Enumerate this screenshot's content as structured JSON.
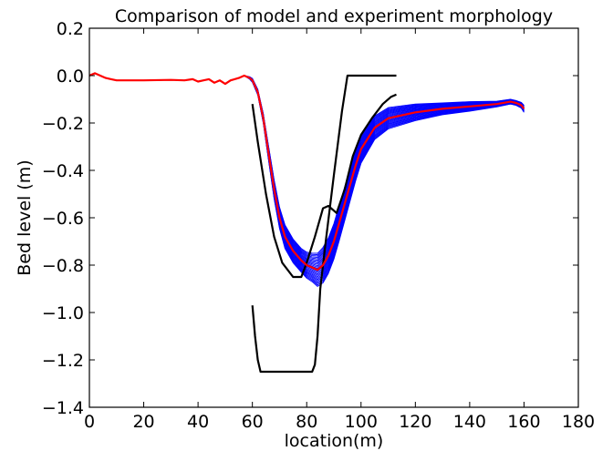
{
  "chart_data": {
    "type": "line",
    "title": "Comparison of model and experiment morphology",
    "xlabel": "location(m)",
    "ylabel": "Bed level (m)",
    "xlim": [
      0,
      180
    ],
    "ylim": [
      -1.4,
      0.2
    ],
    "xticks": [
      0,
      20,
      40,
      60,
      80,
      100,
      120,
      140,
      160,
      180
    ],
    "yticks": [
      -1.4,
      -1.2,
      -1.0,
      -0.8,
      -0.6,
      -0.4,
      -0.2,
      0.0,
      0.2
    ],
    "xtick_labels": [
      "0",
      "20",
      "40",
      "60",
      "80",
      "100",
      "120",
      "140",
      "160",
      "180"
    ],
    "ytick_labels": [
      "−1.4",
      "−1.2",
      "−1.0",
      "−0.8",
      "−0.6",
      "−0.4",
      "−0.2",
      "0.0",
      "0.2"
    ],
    "grid": false,
    "colors": {
      "ensemble": "#0000ff",
      "mean": "#ff0000",
      "experiment": "#000000"
    },
    "ensemble": {
      "x": [
        0,
        2,
        4,
        6,
        8,
        10,
        20,
        30,
        35,
        38,
        40,
        42,
        44,
        46,
        48,
        50,
        52,
        55,
        57,
        59,
        60,
        62,
        64,
        66,
        68,
        70,
        72,
        75,
        78,
        80,
        82,
        84,
        86,
        88,
        90,
        92,
        95,
        98,
        100,
        105,
        110,
        120,
        130,
        140,
        150,
        155,
        157,
        159,
        160
      ],
      "center": [
        0.0,
        0.01,
        0.0,
        -0.01,
        -0.015,
        -0.02,
        -0.02,
        -0.018,
        -0.02,
        -0.015,
        -0.025,
        -0.02,
        -0.015,
        -0.03,
        -0.02,
        -0.035,
        -0.02,
        -0.01,
        0.0,
        -0.01,
        -0.02,
        -0.07,
        -0.18,
        -0.33,
        -0.48,
        -0.6,
        -0.68,
        -0.74,
        -0.78,
        -0.8,
        -0.81,
        -0.82,
        -0.8,
        -0.76,
        -0.7,
        -0.62,
        -0.5,
        -0.38,
        -0.31,
        -0.22,
        -0.18,
        -0.155,
        -0.14,
        -0.13,
        -0.12,
        -0.11,
        -0.115,
        -0.125,
        -0.14
      ],
      "spread": [
        0,
        0,
        0,
        0,
        0,
        0,
        0,
        0,
        0,
        0,
        0,
        0,
        0,
        0,
        0,
        0,
        0,
        0,
        0,
        0.005,
        0.008,
        0.012,
        0.02,
        0.03,
        0.04,
        0.045,
        0.05,
        0.05,
        0.05,
        0.055,
        0.06,
        0.07,
        0.075,
        0.075,
        0.075,
        0.075,
        0.07,
        0.065,
        0.06,
        0.05,
        0.045,
        0.035,
        0.025,
        0.02,
        0.012,
        0.01,
        0.01,
        0.012,
        0.015
      ],
      "count": 25
    },
    "series": [
      {
        "x": [
          0,
          2,
          4,
          6,
          8,
          10,
          20,
          30,
          35,
          38,
          40,
          42,
          44,
          46,
          48,
          50,
          52,
          55,
          57,
          59,
          60,
          62,
          64,
          66,
          68,
          70,
          72,
          75,
          78,
          80,
          82,
          84,
          86,
          88,
          90,
          92,
          95,
          98,
          100,
          105,
          110,
          120,
          130,
          140,
          150,
          155,
          157,
          159,
          160
        ],
        "y": [
          0.0,
          0.01,
          0.0,
          -0.01,
          -0.015,
          -0.02,
          -0.02,
          -0.018,
          -0.02,
          -0.015,
          -0.025,
          -0.02,
          -0.015,
          -0.03,
          -0.02,
          -0.035,
          -0.02,
          -0.01,
          0.0,
          -0.01,
          -0.02,
          -0.07,
          -0.18,
          -0.33,
          -0.48,
          -0.6,
          -0.68,
          -0.74,
          -0.78,
          -0.8,
          -0.81,
          -0.82,
          -0.8,
          -0.76,
          -0.7,
          -0.62,
          -0.5,
          -0.38,
          -0.31,
          -0.22,
          -0.18,
          -0.155,
          -0.14,
          -0.13,
          -0.12,
          -0.11,
          -0.115,
          -0.125,
          -0.14
        ]
      },
      {
        "x": [
          60,
          62,
          65,
          68,
          71,
          75,
          78,
          80,
          83,
          86,
          88,
          91,
          94,
          97,
          100,
          104,
          108,
          111,
          113
        ],
        "y": [
          -0.12,
          -0.28,
          -0.5,
          -0.68,
          -0.79,
          -0.85,
          -0.85,
          -0.79,
          -0.68,
          -0.56,
          -0.55,
          -0.58,
          -0.48,
          -0.34,
          -0.25,
          -0.18,
          -0.12,
          -0.09,
          -0.08
        ]
      },
      {
        "x": [
          60,
          61,
          62,
          63,
          65,
          70,
          75,
          80,
          82,
          83,
          84,
          85,
          87,
          90,
          93,
          95,
          100,
          105,
          113
        ],
        "y": [
          -0.97,
          -1.1,
          -1.2,
          -1.25,
          -1.25,
          -1.25,
          -1.25,
          -1.25,
          -1.25,
          -1.22,
          -1.1,
          -0.9,
          -0.7,
          -0.42,
          -0.15,
          0.0,
          0.0,
          0.0,
          0.0
        ]
      }
    ]
  }
}
